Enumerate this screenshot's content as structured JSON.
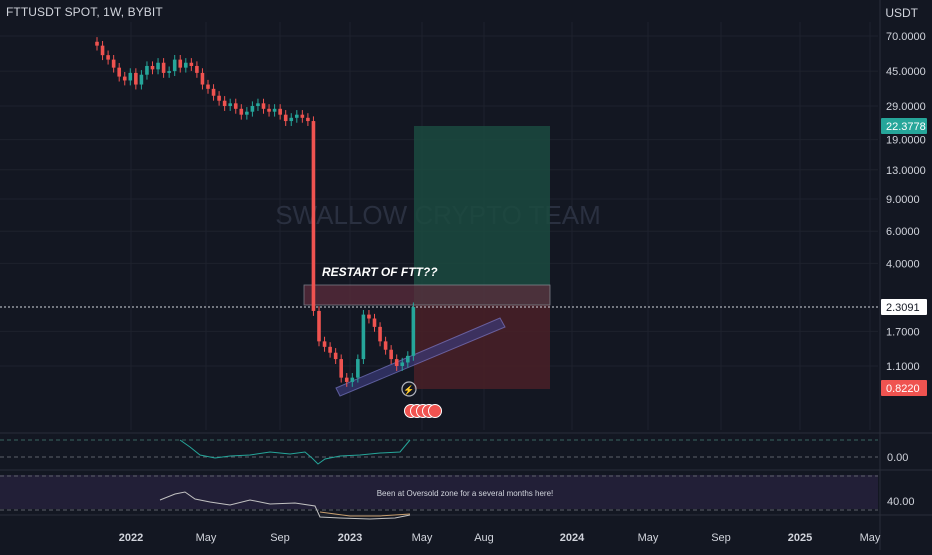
{
  "header": {
    "symbol_line": "FTTUSDT SPOT, 1W, BYBIT",
    "currency": "USDT"
  },
  "watermark": "SWALLOW CRYPTO TEAM",
  "annotations": {
    "restart_label": "RESTART OF FTT??",
    "oversold_note": "Been at Oversold zone for a several months here!"
  },
  "colors": {
    "background": "#131722",
    "up": "#26a69a",
    "down": "#ef5350",
    "target_zone": "#1b4a40",
    "stop_zone": "#4a2027",
    "resistance_box": "#5c2c3c",
    "trendline_channel": "#3a3a78",
    "indicator_line": "#26a69a",
    "rsi_line": "#c2c2c2",
    "rsi_band": "#2a2440"
  },
  "chart_data": {
    "type": "candlestick",
    "title": "FTTUSDT SPOT, 1W, BYBIT",
    "y_scale": "log",
    "ylabel": "USDT",
    "y_ticks": [
      "70.0000",
      "45.0000",
      "29.0000",
      "19.0000",
      "13.0000",
      "9.0000",
      "6.0000",
      "4.0000",
      "1.7000",
      "1.1000"
    ],
    "x_ticks": [
      "2022",
      "May",
      "Sep",
      "2023",
      "May",
      "Aug",
      "2024",
      "May",
      "Sep",
      "2025",
      "May"
    ],
    "price_labels": {
      "target": {
        "value": "22.3778",
        "color": "#26a69a"
      },
      "current": {
        "value": "2.3091",
        "color": "#ffffff"
      },
      "stop": {
        "value": "0.8220",
        "color": "#ef5350"
      }
    },
    "series": [
      {
        "name": "FTTUSDT",
        "note": "approximate weekly closes read from chart",
        "values": [
          62,
          55,
          52,
          47,
          42,
          40,
          44,
          38,
          43,
          48,
          46,
          50,
          44,
          45,
          52,
          47,
          50,
          48,
          44,
          38,
          36,
          33,
          31,
          29,
          30,
          28,
          26,
          27,
          29,
          30,
          28,
          27,
          28,
          26,
          24,
          25,
          26,
          25,
          24,
          2.2,
          1.5,
          1.4,
          1.3,
          1.2,
          0.95,
          0.9,
          0.95,
          1.2,
          2.1,
          2.0,
          1.8,
          1.5,
          1.35,
          1.2,
          1.1,
          1.15,
          1.25,
          2.3091
        ]
      }
    ],
    "oscillator_1": {
      "ticks": [
        "0.00"
      ]
    },
    "oscillator_2": {
      "ticks": [
        "40.00"
      ]
    }
  }
}
